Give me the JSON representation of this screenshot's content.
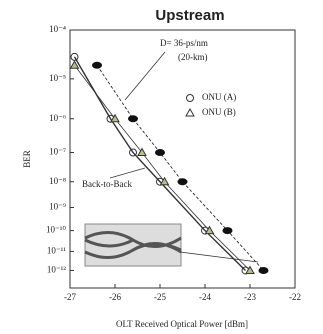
{
  "chart_data": {
    "type": "scatter",
    "title": "Upstream",
    "x_label": "OLT Received Optical Power [dBm]",
    "y_label": "BER",
    "y_scale": "log-log",
    "xlim": [
      -27,
      -22
    ],
    "xticks": [
      -27,
      -26,
      -25,
      -24,
      -23,
      -22
    ],
    "ylim": [
      0.0001,
      1e-13
    ],
    "yticks": [
      {
        "value": 0.0001,
        "label": "10⁻⁴"
      },
      {
        "value": 1e-05,
        "label": "10⁻⁵"
      },
      {
        "value": 1e-06,
        "label": "10⁻⁶"
      },
      {
        "value": 1e-07,
        "label": "10⁻⁷"
      },
      {
        "value": 1e-08,
        "label": "10⁻⁸"
      },
      {
        "value": 1e-09,
        "label": "10⁻⁹"
      },
      {
        "value": 1e-10,
        "label": "10⁻¹⁰"
      },
      {
        "value": 1e-11,
        "label": "10⁻¹¹"
      },
      {
        "value": 1e-12,
        "label": "10⁻¹²"
      }
    ],
    "annotations": [
      "D= 36-ps/nm",
      "(20-km)",
      "Back-to-Back"
    ],
    "series": [
      {
        "name": "ONU (A)",
        "marker": "circle",
        "color": "#333333",
        "x": [
          -26.9,
          -26.1,
          -25.6,
          -25.0,
          -24.0,
          -23.1
        ],
        "values": [
          3e-05,
          1e-06,
          1e-07,
          1e-08,
          1e-10,
          1e-12
        ]
      },
      {
        "name": "ONU (B)",
        "marker": "triangle",
        "color": "#333333",
        "x": [
          -26.9,
          -26.0,
          -25.4,
          -24.9,
          -23.9,
          -23.0
        ],
        "values": [
          2e-05,
          1e-06,
          1e-07,
          1e-08,
          1e-10,
          1e-12
        ]
      },
      {
        "marker": "filled",
        "color": "#111111",
        "x": [
          -26.4,
          -25.6,
          -25.0,
          -24.5,
          -23.5,
          -22.7
        ],
        "values": [
          2e-05,
          1e-06,
          1e-07,
          1e-08,
          1e-10,
          1e-12
        ]
      }
    ]
  }
}
